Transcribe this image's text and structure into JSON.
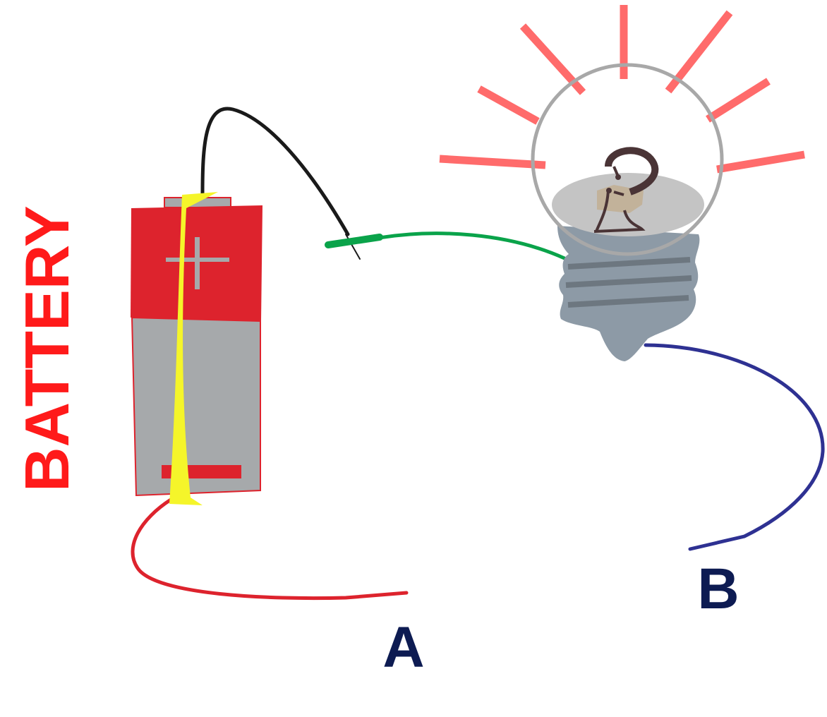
{
  "labels": {
    "battery": "BATTERY",
    "terminal_a": "A",
    "terminal_b": "B"
  },
  "colors": {
    "battery_label": "#ff1a1a",
    "terminal_label": "#0d1b52",
    "battery_top": "#dd232d",
    "battery_body": "#a6a9ab",
    "battery_tape": "#f5f52a",
    "battery_marks": "#a6a9ab",
    "battery_minus": "#dd232d",
    "wire_black": "#1a1a1a",
    "wire_green": "#0aa34a",
    "wire_red": "#dd232d",
    "wire_blue": "#2e3192",
    "bulb_glass": "#a8a8a8",
    "bulb_base": "#8d9aa6",
    "bulb_threads": "#6d7780",
    "bulb_inner": "#c4c4c4",
    "filament_support": "#c2b29a",
    "filament": "#4a3436",
    "rays": "#ff6b6b"
  },
  "icons": {
    "battery": "battery-icon",
    "bulb": "light-bulb-icon"
  }
}
